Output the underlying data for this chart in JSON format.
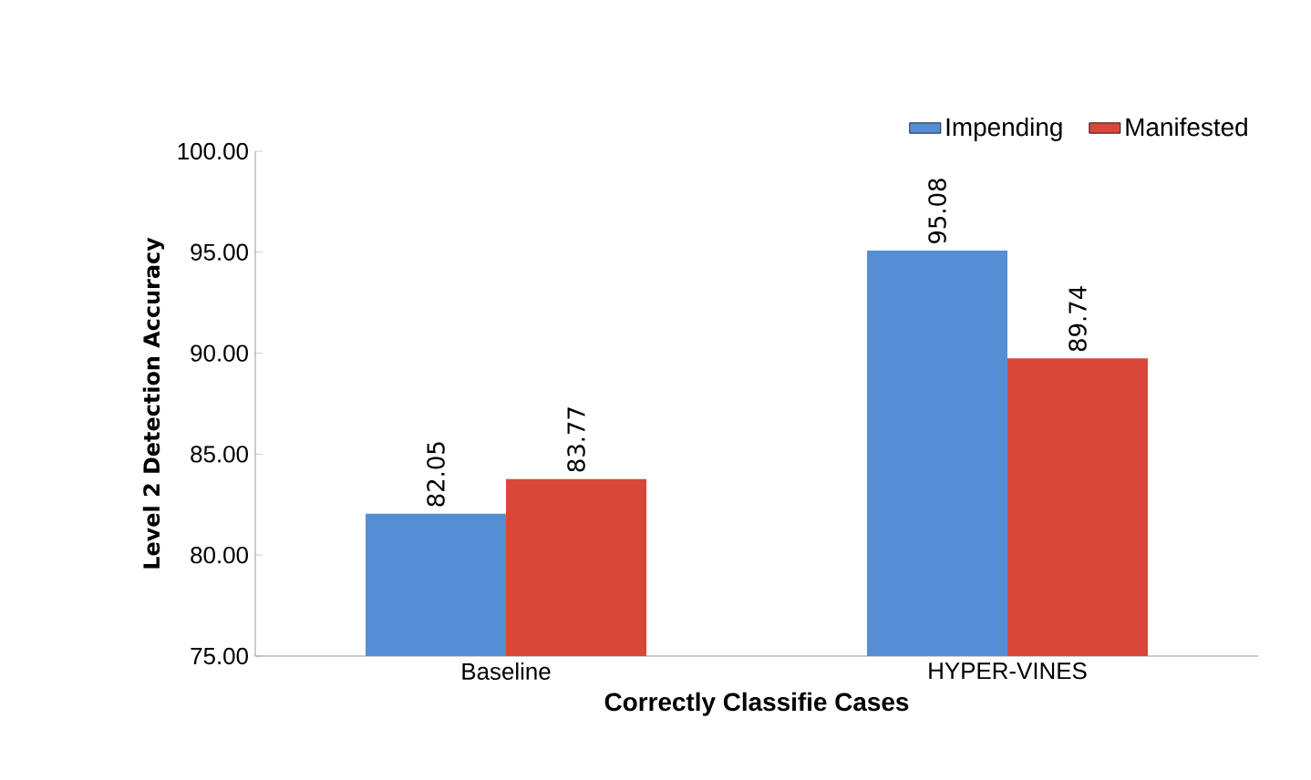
{
  "chart_data": {
    "type": "bar",
    "xlabel": "Correctly Classifie Cases",
    "ylabel": "Level 2 Detection Accuracy",
    "categories": [
      "Baseline",
      "HYPER-VINES"
    ],
    "series": [
      {
        "name": "Impending",
        "color": "#558ed5",
        "values": [
          82.05,
          95.08
        ]
      },
      {
        "name": "Manifested",
        "color": "#d9473b",
        "values": [
          83.77,
          89.74
        ]
      }
    ],
    "ylim": [
      75,
      100
    ],
    "yticks": [
      {
        "value": 75,
        "label": "75.00"
      },
      {
        "value": 80,
        "label": "80.00"
      },
      {
        "value": 85,
        "label": "85.00"
      },
      {
        "value": 90,
        "label": "90.00"
      },
      {
        "value": 95,
        "label": "95.00"
      },
      {
        "value": 100,
        "label": "100.00"
      }
    ],
    "data_labels": true,
    "legend": "top right"
  }
}
